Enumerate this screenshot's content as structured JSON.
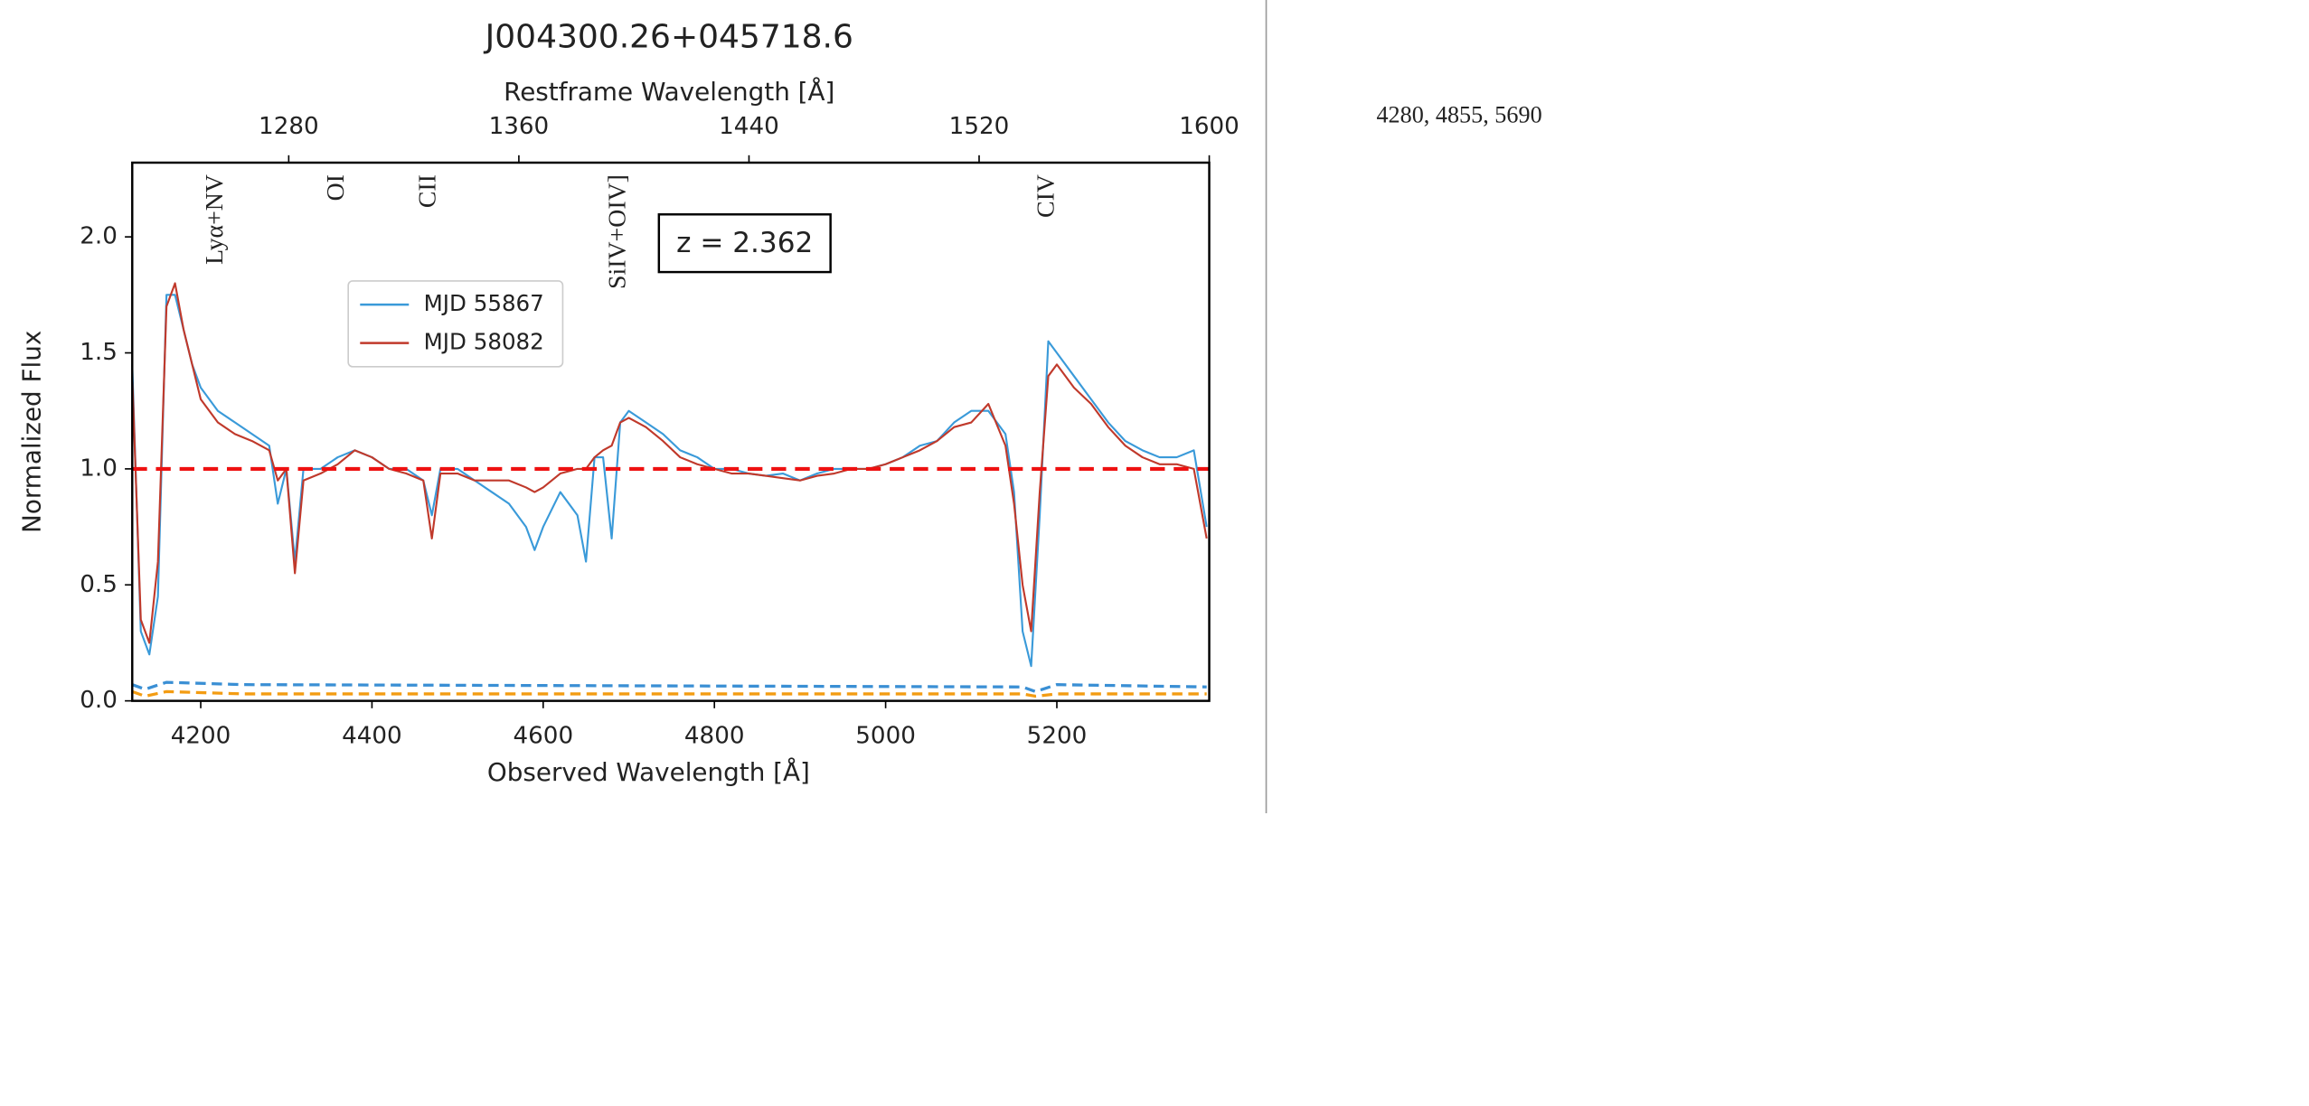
{
  "chart_data": {
    "type": "line",
    "title": "J004300.26+045718.6",
    "x_label": "Observed Wavelength [Å]",
    "x2_label": "Restframe Wavelength [Å]",
    "y_label": "Normalized Flux",
    "xlim": [
      4120,
      5378
    ],
    "xticks": [
      4200,
      4400,
      4600,
      4800,
      5000,
      5200
    ],
    "x2lim": [
      1225.6,
      1600
    ],
    "x2ticks": [
      1280,
      1360,
      1440,
      1520,
      1600
    ],
    "ylim": [
      0,
      2.32
    ],
    "yticks": [
      {
        "value": 0,
        "label": "0.0"
      },
      0.5,
      {
        "value": 1,
        "label": "1.0"
      },
      1.5,
      {
        "value": 2,
        "label": "2.0"
      }
    ],
    "annotation": "z = 2.362",
    "line_labels": [
      {
        "text": "Lyα+NV",
        "x": 1255
      },
      {
        "text": "OI",
        "x": 1297
      },
      {
        "text": "CII",
        "x": 1329
      },
      {
        "text": "SiIV+OIV]",
        "x": 1395
      },
      {
        "text": "CIV",
        "x": 1544
      }
    ],
    "reference_line": {
      "y": 1.0,
      "color": "#ee1111"
    },
    "x": [
      4120,
      4130,
      4140,
      4150,
      4160,
      4170,
      4180,
      4190,
      4200,
      4220,
      4240,
      4260,
      4280,
      4290,
      4300,
      4310,
      4320,
      4340,
      4360,
      4380,
      4400,
      4420,
      4440,
      4460,
      4470,
      4480,
      4500,
      4520,
      4540,
      4560,
      4580,
      4590,
      4600,
      4620,
      4640,
      4650,
      4660,
      4670,
      4680,
      4690,
      4700,
      4720,
      4740,
      4760,
      4780,
      4800,
      4820,
      4840,
      4860,
      4880,
      4900,
      4920,
      4940,
      4960,
      4980,
      5000,
      5020,
      5040,
      5060,
      5080,
      5100,
      5120,
      5140,
      5150,
      5160,
      5170,
      5180,
      5190,
      5200,
      5220,
      5240,
      5260,
      5280,
      5300,
      5320,
      5340,
      5360,
      5375
    ],
    "series": [
      {
        "name": "MJD 55867",
        "color": "#3a9ad9",
        "values": [
          1.45,
          0.3,
          0.2,
          0.45,
          1.75,
          1.75,
          1.6,
          1.45,
          1.35,
          1.25,
          1.2,
          1.15,
          1.1,
          0.85,
          1.0,
          0.6,
          1.0,
          1.0,
          1.05,
          1.08,
          1.05,
          1.0,
          1.0,
          0.95,
          0.8,
          1.0,
          1.0,
          0.95,
          0.9,
          0.85,
          0.75,
          0.65,
          0.75,
          0.9,
          0.8,
          0.6,
          1.05,
          1.05,
          0.7,
          1.2,
          1.25,
          1.2,
          1.15,
          1.08,
          1.05,
          1.0,
          1.0,
          0.98,
          0.97,
          0.98,
          0.95,
          0.98,
          1.0,
          1.0,
          1.0,
          1.02,
          1.05,
          1.1,
          1.12,
          1.2,
          1.25,
          1.25,
          1.15,
          0.9,
          0.3,
          0.15,
          0.8,
          1.55,
          1.5,
          1.4,
          1.3,
          1.2,
          1.12,
          1.08,
          1.05,
          1.05,
          1.08,
          0.75
        ]
      },
      {
        "name": "MJD 58082",
        "color": "#c0392b",
        "values": [
          1.4,
          0.35,
          0.25,
          0.6,
          1.7,
          1.8,
          1.6,
          1.45,
          1.3,
          1.2,
          1.15,
          1.12,
          1.08,
          0.95,
          1.0,
          0.55,
          0.95,
          0.98,
          1.02,
          1.08,
          1.05,
          1.0,
          0.98,
          0.95,
          0.7,
          0.98,
          0.98,
          0.95,
          0.95,
          0.95,
          0.92,
          0.9,
          0.92,
          0.98,
          1.0,
          1.0,
          1.05,
          1.08,
          1.1,
          1.2,
          1.22,
          1.18,
          1.12,
          1.05,
          1.02,
          1.0,
          0.98,
          0.98,
          0.97,
          0.96,
          0.95,
          0.97,
          0.98,
          1.0,
          1.0,
          1.02,
          1.05,
          1.08,
          1.12,
          1.18,
          1.2,
          1.28,
          1.1,
          0.85,
          0.5,
          0.3,
          0.9,
          1.4,
          1.45,
          1.35,
          1.28,
          1.18,
          1.1,
          1.05,
          1.02,
          1.02,
          1.0,
          0.7
        ]
      }
    ],
    "error_series": [
      {
        "color": "#3a8fd4",
        "x": [
          4120,
          4135,
          4160,
          4250,
          5160,
          5175,
          5200,
          5375
        ],
        "values": [
          0.07,
          0.05,
          0.08,
          0.07,
          0.06,
          0.04,
          0.07,
          0.06
        ]
      },
      {
        "color": "#f39c12",
        "x": [
          4120,
          4135,
          4160,
          4250,
          5160,
          5175,
          5200,
          5375
        ],
        "values": [
          0.04,
          0.02,
          0.04,
          0.03,
          0.03,
          0.02,
          0.03,
          0.03
        ]
      }
    ]
  },
  "side_text": "4280, 4855, 5690"
}
